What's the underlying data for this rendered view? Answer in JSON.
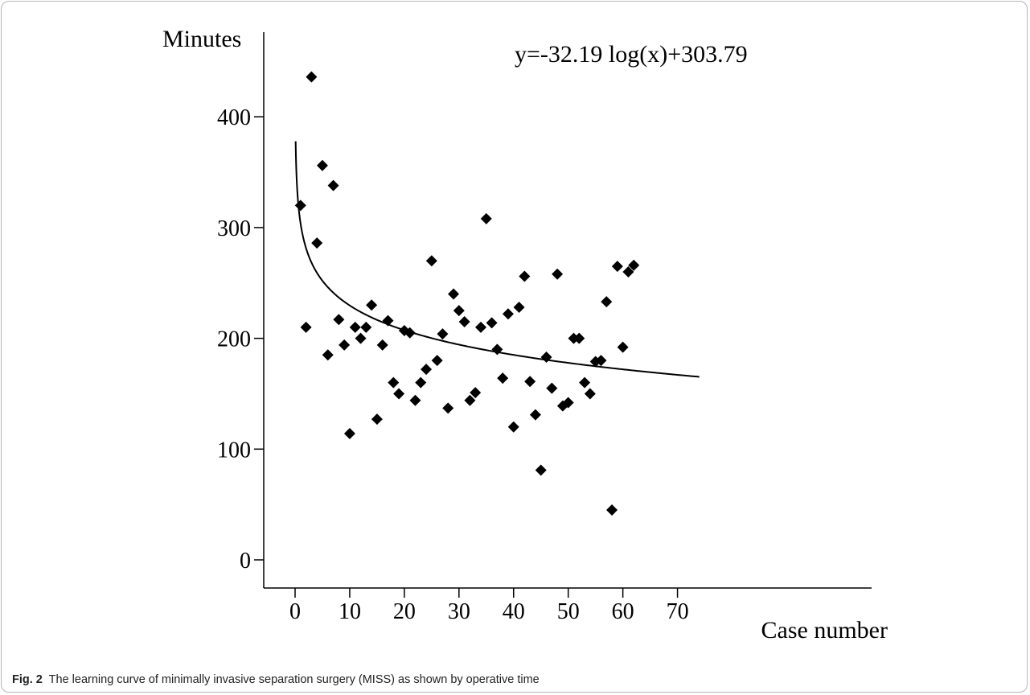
{
  "chart_data": {
    "type": "scatter",
    "title": "",
    "ylabel": "Minutes",
    "xlabel": "Case number",
    "annotation": "y=-32.19 log(x)+303.79",
    "xlim": [
      0,
      74
    ],
    "ylim": [
      -25,
      460
    ],
    "x_ticks": [
      0,
      10,
      20,
      30,
      40,
      50,
      60,
      70
    ],
    "y_ticks": [
      0,
      100,
      200,
      300,
      400
    ],
    "grid": false,
    "legend": "none",
    "marker_color": "#000000",
    "marker_shape": "diamond",
    "trend_line": {
      "type": "logarithmic",
      "formula": "y=-32.19 log(x)+303.79",
      "x_from": 0.1,
      "x_to": 74,
      "color": "#000000"
    },
    "series": [
      {
        "x": [
          1,
          2,
          3,
          4,
          5,
          6,
          7,
          8,
          9,
          10,
          11,
          12,
          13,
          14,
          15,
          16,
          17,
          18,
          19,
          20,
          21,
          22,
          23,
          24,
          25,
          26,
          27,
          28,
          29,
          30,
          31,
          32,
          33,
          34,
          35,
          36,
          37,
          38,
          39,
          40,
          41,
          42,
          43,
          44,
          45,
          46,
          47,
          48,
          49,
          50,
          51,
          52,
          53,
          54,
          55,
          56,
          57,
          58,
          59,
          60,
          61,
          62
        ],
        "y": [
          320,
          210,
          436,
          286,
          356,
          185,
          338,
          217,
          194,
          114,
          210,
          200,
          210,
          230,
          127,
          194,
          216,
          160,
          150,
          207,
          205,
          144,
          160,
          172,
          270,
          180,
          204,
          137,
          240,
          225,
          215,
          144,
          151,
          210,
          308,
          214,
          190,
          164,
          222,
          120,
          228,
          256,
          161,
          131,
          81,
          183,
          155,
          258,
          139,
          142,
          200,
          200,
          160,
          150,
          179,
          180,
          233,
          45,
          265,
          192,
          260,
          266
        ]
      }
    ]
  },
  "caption": {
    "label": "Fig. 2",
    "text": "The learning curve of minimally invasive separation surgery (MISS) as shown by operative time"
  }
}
